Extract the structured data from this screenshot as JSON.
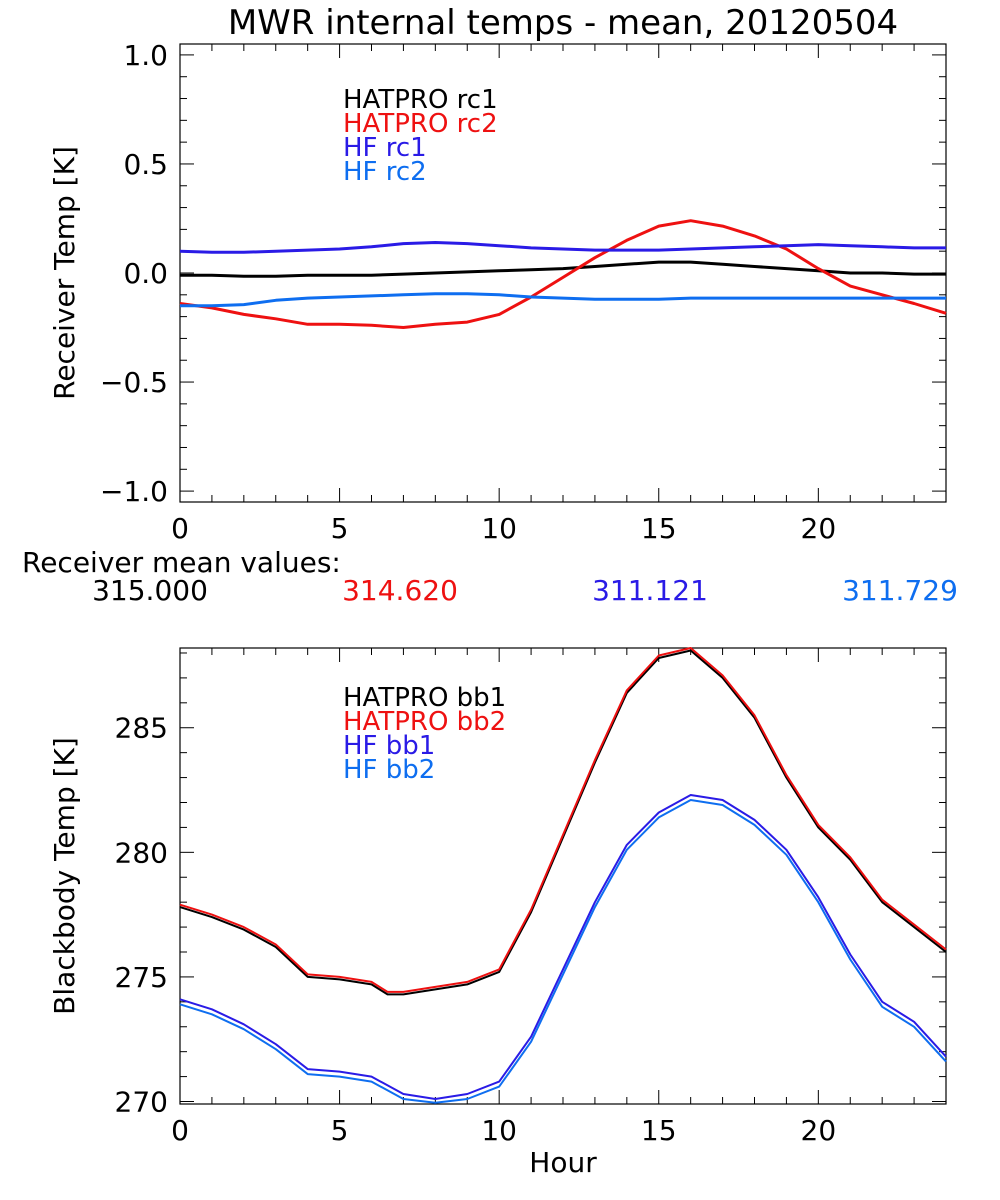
{
  "title": "MWR internal temps - mean, 20120504",
  "colors": {
    "black": "#000000",
    "red": "#ee1111",
    "blue": "#2a1be6",
    "lightblue": "#0e6ef0"
  },
  "chart_data": [
    {
      "type": "line",
      "ylabel": "Receiver Temp [K]",
      "xlabel": "",
      "xlim": [
        0,
        24
      ],
      "ylim": [
        -1.05,
        1.05
      ],
      "xticks": [
        0,
        5,
        10,
        15,
        20
      ],
      "xtick_labels": [
        "0",
        "5",
        "10",
        "15",
        "20"
      ],
      "yticks": [
        -1.0,
        -0.5,
        0.0,
        0.5,
        1.0
      ],
      "ytick_labels": [
        "−1.0",
        "−0.5",
        "0.0",
        "0.5",
        "1.0"
      ],
      "legend_position": "top-left",
      "series": [
        {
          "name": "HATPRO rc1",
          "color": "#000000",
          "x": [
            0,
            1,
            2,
            3,
            4,
            5,
            6,
            7,
            8,
            9,
            10,
            11,
            12,
            13,
            14,
            15,
            16,
            17,
            18,
            19,
            20,
            21,
            22,
            23,
            24
          ],
          "y": [
            -0.01,
            -0.01,
            -0.015,
            -0.015,
            -0.01,
            -0.01,
            -0.01,
            -0.005,
            0.0,
            0.005,
            0.01,
            0.015,
            0.02,
            0.03,
            0.04,
            0.05,
            0.05,
            0.04,
            0.03,
            0.02,
            0.01,
            0.0,
            0.0,
            -0.005,
            -0.005
          ]
        },
        {
          "name": "HATPRO rc2",
          "color": "#ee1111",
          "x": [
            0,
            1,
            2,
            3,
            4,
            5,
            6,
            7,
            8,
            9,
            10,
            11,
            12,
            13,
            14,
            15,
            16,
            17,
            18,
            19,
            20,
            21,
            22,
            23,
            24
          ],
          "y": [
            -0.14,
            -0.16,
            -0.19,
            -0.21,
            -0.235,
            -0.235,
            -0.24,
            -0.25,
            -0.235,
            -0.225,
            -0.19,
            -0.11,
            -0.02,
            0.07,
            0.15,
            0.215,
            0.24,
            0.215,
            0.17,
            0.11,
            0.02,
            -0.06,
            -0.1,
            -0.14,
            -0.185
          ]
        },
        {
          "name": "HF rc1",
          "color": "#2a1be6",
          "x": [
            0,
            1,
            2,
            3,
            4,
            5,
            6,
            7,
            8,
            9,
            10,
            11,
            12,
            13,
            14,
            15,
            16,
            17,
            18,
            19,
            20,
            21,
            22,
            23,
            24
          ],
          "y": [
            0.1,
            0.095,
            0.095,
            0.1,
            0.105,
            0.11,
            0.12,
            0.135,
            0.14,
            0.135,
            0.125,
            0.115,
            0.11,
            0.105,
            0.105,
            0.105,
            0.11,
            0.115,
            0.12,
            0.125,
            0.13,
            0.125,
            0.12,
            0.115,
            0.115
          ]
        },
        {
          "name": "HF rc2",
          "color": "#0e6ef0",
          "x": [
            0,
            1,
            2,
            3,
            4,
            5,
            6,
            7,
            8,
            9,
            10,
            11,
            12,
            13,
            14,
            15,
            16,
            17,
            18,
            19,
            20,
            21,
            22,
            23,
            24
          ],
          "y": [
            -0.15,
            -0.15,
            -0.145,
            -0.125,
            -0.115,
            -0.11,
            -0.105,
            -0.1,
            -0.095,
            -0.095,
            -0.1,
            -0.11,
            -0.115,
            -0.12,
            -0.12,
            -0.12,
            -0.115,
            -0.115,
            -0.115,
            -0.115,
            -0.115,
            -0.115,
            -0.115,
            -0.115,
            -0.115
          ]
        }
      ]
    },
    {
      "type": "line",
      "ylabel": "Blackbody Temp [K]",
      "xlabel": "Hour",
      "xlim": [
        0,
        24
      ],
      "ylim": [
        269.9,
        288.2
      ],
      "xticks": [
        0,
        5,
        10,
        15,
        20
      ],
      "xtick_labels": [
        "0",
        "5",
        "10",
        "15",
        "20"
      ],
      "yticks": [
        270,
        275,
        280,
        285
      ],
      "ytick_labels": [
        "270",
        "275",
        "280",
        "285"
      ],
      "legend_position": "top-left",
      "series": [
        {
          "name": "HATPRO bb1",
          "color": "#000000",
          "x": [
            0,
            1,
            2,
            3,
            4,
            5,
            6,
            6.5,
            7,
            8,
            9,
            10,
            11,
            12,
            13,
            14,
            15,
            16,
            17,
            18,
            19,
            20,
            21,
            22,
            23,
            24
          ],
          "y": [
            277.8,
            277.4,
            276.9,
            276.2,
            275.0,
            274.9,
            274.7,
            274.3,
            274.3,
            274.5,
            274.7,
            275.2,
            277.6,
            280.6,
            283.6,
            286.4,
            287.8,
            288.1,
            287.0,
            285.4,
            283.0,
            281.0,
            279.7,
            278.0,
            277.0,
            276.0
          ]
        },
        {
          "name": "HATPRO bb2",
          "color": "#ee1111",
          "x": [
            0,
            1,
            2,
            3,
            4,
            5,
            6,
            6.5,
            7,
            8,
            9,
            10,
            11,
            12,
            13,
            14,
            15,
            16,
            17,
            18,
            19,
            20,
            21,
            22,
            23,
            24
          ],
          "y": [
            277.9,
            277.5,
            277.0,
            276.3,
            275.1,
            275.0,
            274.8,
            274.4,
            274.4,
            274.6,
            274.8,
            275.3,
            277.7,
            280.7,
            283.7,
            286.5,
            287.9,
            288.2,
            287.1,
            285.5,
            283.1,
            281.1,
            279.8,
            278.1,
            277.1,
            276.1
          ]
        },
        {
          "name": "HF bb1",
          "color": "#2a1be6",
          "x": [
            0,
            1,
            2,
            3,
            4,
            5,
            6,
            7,
            8,
            9,
            10,
            11,
            12,
            13,
            14,
            15,
            16,
            17,
            18,
            19,
            20,
            21,
            22,
            23,
            24
          ],
          "y": [
            274.1,
            273.7,
            273.1,
            272.3,
            271.3,
            271.2,
            271.0,
            270.3,
            270.1,
            270.3,
            270.8,
            272.6,
            275.3,
            278.0,
            280.3,
            281.6,
            282.3,
            282.1,
            281.3,
            280.1,
            278.2,
            275.9,
            274.0,
            273.2,
            271.8
          ]
        },
        {
          "name": "HF bb2",
          "color": "#0e6ef0",
          "x": [
            0,
            1,
            2,
            3,
            4,
            5,
            6,
            7,
            8,
            9,
            10,
            11,
            12,
            13,
            14,
            15,
            16,
            17,
            18,
            19,
            20,
            21,
            22,
            23,
            24
          ],
          "y": [
            273.9,
            273.5,
            272.9,
            272.1,
            271.1,
            271.0,
            270.8,
            270.1,
            269.95,
            270.1,
            270.6,
            272.4,
            275.1,
            277.8,
            280.1,
            281.4,
            282.1,
            281.9,
            281.1,
            279.9,
            278.0,
            275.7,
            273.8,
            273.0,
            271.6
          ]
        }
      ]
    }
  ],
  "receiver_mean": {
    "label": "Receiver mean values:",
    "values": [
      {
        "text": "315.000",
        "color": "#000000"
      },
      {
        "text": "314.620",
        "color": "#ee1111"
      },
      {
        "text": "311.121",
        "color": "#2a1be6"
      },
      {
        "text": "311.729",
        "color": "#0e6ef0"
      }
    ]
  }
}
